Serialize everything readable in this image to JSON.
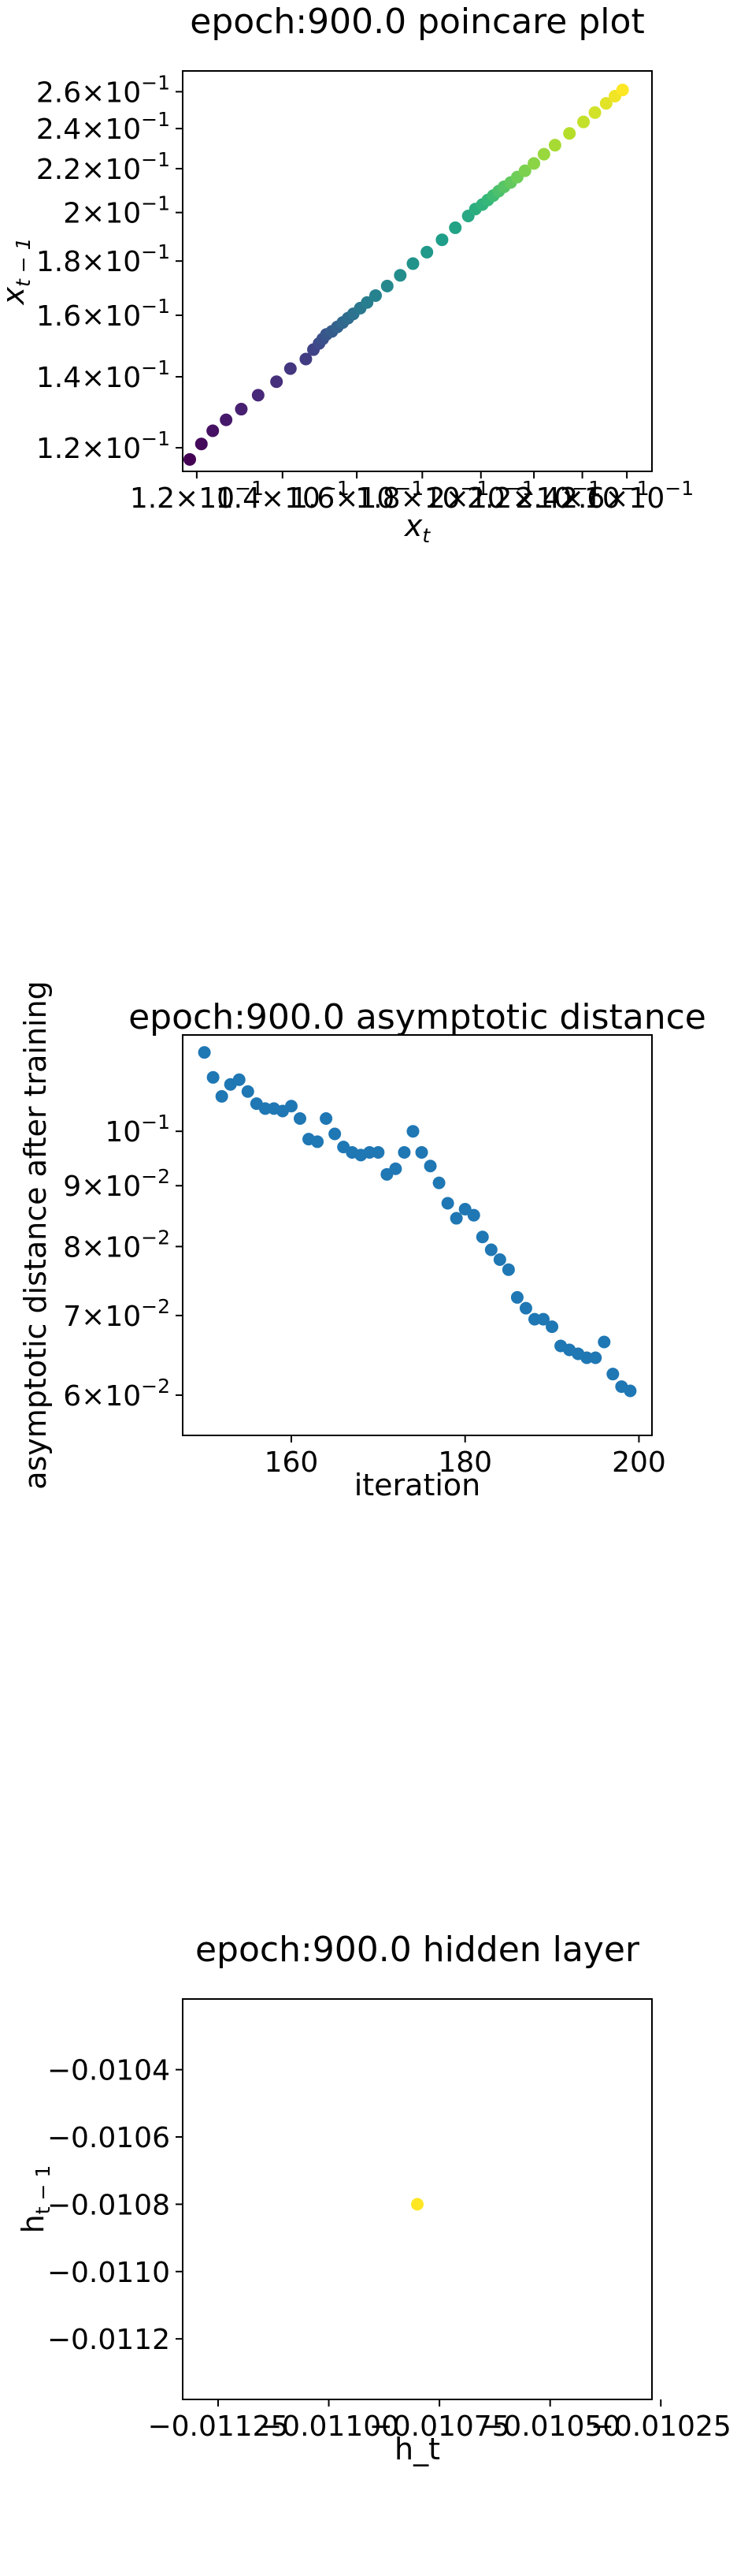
{
  "chart_data": [
    {
      "type": "scatter",
      "title": "epoch:900.0 poincare plot",
      "xlabel": "x_t",
      "ylabel": "x_{t-1}",
      "xscale": "log",
      "yscale": "log",
      "xlim": [
        0.117,
        0.272
      ],
      "ylim": [
        0.114,
        0.272
      ],
      "xticks": [
        {
          "value": 0.12,
          "mant": "1.2",
          "exp": "−1"
        },
        {
          "value": 0.14,
          "mant": "1.4",
          "exp": "−1"
        },
        {
          "value": 0.16,
          "mant": "1.6",
          "exp": "−1"
        },
        {
          "value": 0.18,
          "mant": "1.8",
          "exp": "−1"
        },
        {
          "value": 0.2,
          "mant": "2",
          "exp": "−1"
        },
        {
          "value": 0.22,
          "mant": "2.2",
          "exp": "−1"
        },
        {
          "value": 0.24,
          "mant": "2.4",
          "exp": "−1"
        },
        {
          "value": 0.26,
          "mant": "2.6",
          "exp": "−1"
        }
      ],
      "yticks": [
        {
          "value": 0.12,
          "mant": "1.2",
          "exp": "−1"
        },
        {
          "value": 0.14,
          "mant": "1.4",
          "exp": "−1"
        },
        {
          "value": 0.16,
          "mant": "1.6",
          "exp": "−1"
        },
        {
          "value": 0.18,
          "mant": "1.8",
          "exp": "−1"
        },
        {
          "value": 0.2,
          "mant": "2",
          "exp": "−1"
        },
        {
          "value": 0.22,
          "mant": "2.2",
          "exp": "−1"
        },
        {
          "value": 0.24,
          "mant": "2.4",
          "exp": "−1"
        },
        {
          "value": 0.26,
          "mant": "2.6",
          "exp": "−1"
        }
      ],
      "colormap": "viridis",
      "points": [
        [
          0.1185,
          0.117
        ],
        [
          0.121,
          0.121
        ],
        [
          0.1235,
          0.1245
        ],
        [
          0.1265,
          0.1275
        ],
        [
          0.13,
          0.1305
        ],
        [
          0.134,
          0.1345
        ],
        [
          0.1385,
          0.1385
        ],
        [
          0.142,
          0.1425
        ],
        [
          0.146,
          0.1455
        ],
        [
          0.148,
          0.1485
        ],
        [
          0.1495,
          0.1505
        ],
        [
          0.1505,
          0.152
        ],
        [
          0.1515,
          0.1535
        ],
        [
          0.153,
          0.1545
        ],
        [
          0.1545,
          0.156
        ],
        [
          0.156,
          0.1575
        ],
        [
          0.1575,
          0.159
        ],
        [
          0.159,
          0.1605
        ],
        [
          0.161,
          0.1625
        ],
        [
          0.163,
          0.1645
        ],
        [
          0.1655,
          0.167
        ],
        [
          0.169,
          0.1705
        ],
        [
          0.173,
          0.1745
        ],
        [
          0.177,
          0.179
        ],
        [
          0.1815,
          0.1835
        ],
        [
          0.1865,
          0.1885
        ],
        [
          0.191,
          0.1935
        ],
        [
          0.1955,
          0.1985
        ],
        [
          0.198,
          0.2015
        ],
        [
          0.2005,
          0.2035
        ],
        [
          0.2025,
          0.2055
        ],
        [
          0.2045,
          0.2075
        ],
        [
          0.2065,
          0.2095
        ],
        [
          0.2085,
          0.2115
        ],
        [
          0.211,
          0.2135
        ],
        [
          0.2135,
          0.216
        ],
        [
          0.2165,
          0.219
        ],
        [
          0.22,
          0.2225
        ],
        [
          0.224,
          0.227
        ],
        [
          0.2285,
          0.2315
        ],
        [
          0.2345,
          0.2375
        ],
        [
          0.2405,
          0.2435
        ],
        [
          0.2455,
          0.2485
        ],
        [
          0.2505,
          0.2535
        ],
        [
          0.2545,
          0.2575
        ],
        [
          0.258,
          0.261
        ]
      ]
    },
    {
      "type": "scatter",
      "title": "epoch:900.0 asymptotic distance",
      "xlabel": "iteration",
      "ylabel": "asymptotic distance after training",
      "yscale": "log",
      "xlim": [
        147.5,
        201.5
      ],
      "ylim": [
        0.0555,
        0.1205
      ],
      "color": "#1f77b4",
      "xticks": [
        {
          "value": 160,
          "label": "160"
        },
        {
          "value": 180,
          "label": "180"
        },
        {
          "value": 200,
          "label": "200"
        }
      ],
      "yticks": [
        {
          "value": 0.06,
          "mant": "6",
          "exp": "−2"
        },
        {
          "value": 0.07,
          "mant": "7",
          "exp": "−2"
        },
        {
          "value": 0.08,
          "mant": "8",
          "exp": "−2"
        },
        {
          "value": 0.09,
          "mant": "9",
          "exp": "−2"
        },
        {
          "value": 0.1,
          "mant": "10",
          "exp": "−1",
          "plain": true
        }
      ],
      "x": [
        150,
        151,
        152,
        153,
        154,
        155,
        156,
        157,
        158,
        159,
        160,
        161,
        162,
        163,
        164,
        165,
        166,
        167,
        168,
        169,
        170,
        171,
        172,
        173,
        174,
        175,
        176,
        177,
        178,
        179,
        180,
        181,
        182,
        183,
        184,
        185,
        186,
        187,
        188,
        189,
        190,
        191,
        192,
        193,
        194,
        195,
        196,
        197,
        198,
        199
      ],
      "y": [
        0.1165,
        0.111,
        0.107,
        0.1095,
        0.1105,
        0.108,
        0.1055,
        0.1045,
        0.1045,
        0.104,
        0.105,
        0.1025,
        0.0985,
        0.098,
        0.1025,
        0.0995,
        0.097,
        0.096,
        0.0955,
        0.096,
        0.096,
        0.092,
        0.093,
        0.096,
        0.1,
        0.096,
        0.0935,
        0.0905,
        0.087,
        0.0845,
        0.086,
        0.085,
        0.0815,
        0.0795,
        0.078,
        0.0765,
        0.0725,
        0.071,
        0.0695,
        0.0695,
        0.0685,
        0.066,
        0.0655,
        0.065,
        0.0645,
        0.0645,
        0.0665,
        0.0625,
        0.061,
        0.0605
      ]
    },
    {
      "type": "scatter",
      "title": "epoch:900.0 hidden layer",
      "xlabel": "h_t",
      "ylabel": "h_{t-1}",
      "xlim": [
        -0.01133,
        -0.01027
      ],
      "ylim": [
        -0.01138,
        -0.01019
      ],
      "color": "#fde725",
      "xticks": [
        {
          "value": -0.01125,
          "label": "−0.01125"
        },
        {
          "value": -0.011,
          "label": "−0.01100"
        },
        {
          "value": -0.01075,
          "label": "−0.01075"
        },
        {
          "value": -0.0105,
          "label": "−0.01050"
        },
        {
          "value": -0.01025,
          "label": "−0.01025"
        }
      ],
      "yticks": [
        {
          "value": -0.0104,
          "label": "−0.0104"
        },
        {
          "value": -0.0106,
          "label": "−0.0106"
        },
        {
          "value": -0.0108,
          "label": "−0.0108"
        },
        {
          "value": -0.011,
          "label": "−0.0110"
        },
        {
          "value": -0.0112,
          "label": "−0.0112"
        }
      ],
      "points": [
        [
          -0.0108,
          -0.0108
        ]
      ]
    }
  ]
}
